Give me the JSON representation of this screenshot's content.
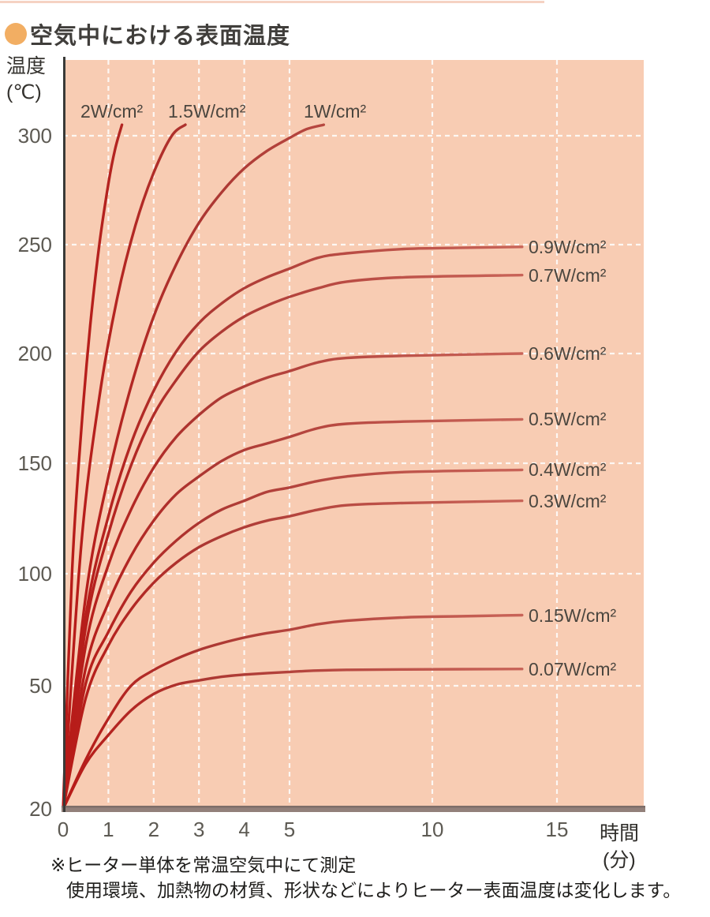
{
  "page": {
    "title": "空気中における表面温度",
    "note_line1": "※ヒーター単体を常温空気中にて測定",
    "note_line2": "使用環境、加熱物の材質、形状などによりヒーター表面温度は変化します。"
  },
  "chart_data": {
    "type": "line",
    "title": "空気中における表面温度",
    "xlabel": "時間",
    "xlabel_unit": "(分)",
    "ylabel": "温度",
    "ylabel_unit": "(℃)",
    "x_ticks": [
      0,
      1,
      2,
      3,
      4,
      5,
      10,
      15
    ],
    "y_ticks": [
      300,
      250,
      200,
      150,
      100,
      50,
      20
    ],
    "xlim": [
      0,
      15.8
    ],
    "ylim": [
      20,
      310
    ],
    "grid": "white-dashed",
    "legend_position": "inline-labels",
    "plot_bg": "#f8ccb3",
    "curve_color_start": "#b81a17",
    "curve_color_mid": "#ac3732",
    "curve_color_end": "#ca665a",
    "axis_color": "#3a3a38",
    "baseline_bar_color": "#92807a",
    "note": "ヒーター単体を常温空気中にて測定。使用環境、加熱物の材質、形状などによりヒーター表面温度は変化します。",
    "series": [
      {
        "label": "2W/cm²",
        "watts_per_cm2": 2,
        "label_side": "top",
        "points": [
          [
            0,
            20
          ],
          [
            0.2,
            102
          ],
          [
            0.4,
            165
          ],
          [
            0.6,
            213
          ],
          [
            0.8,
            250
          ],
          [
            1.0,
            278
          ],
          [
            1.15,
            294
          ],
          [
            1.3,
            305
          ]
        ]
      },
      {
        "label": "1.5W/cm²",
        "watts_per_cm2": 1.5,
        "label_side": "top",
        "points": [
          [
            0,
            20
          ],
          [
            0.4,
            113
          ],
          [
            0.8,
            180
          ],
          [
            1.2,
            226
          ],
          [
            1.6,
            259
          ],
          [
            2.0,
            283
          ],
          [
            2.4,
            300
          ],
          [
            2.7,
            305
          ]
        ]
      },
      {
        "label": "1W/cm²",
        "watts_per_cm2": 1,
        "label_side": "top",
        "points": [
          [
            0,
            20
          ],
          [
            0.5,
            90
          ],
          [
            1,
            144
          ],
          [
            1.5,
            185
          ],
          [
            2,
            217
          ],
          [
            2.5,
            241
          ],
          [
            3,
            260
          ],
          [
            3.5,
            274
          ],
          [
            4,
            285
          ],
          [
            4.5,
            293
          ],
          [
            5,
            299
          ],
          [
            5.6,
            303
          ],
          [
            6.2,
            305
          ]
        ]
      },
      {
        "label": "0.9W/cm²",
        "watts_per_cm2": 0.9,
        "label_side": "right",
        "plateau_c": 248,
        "points": [
          [
            0,
            20
          ],
          [
            0.5,
            81
          ],
          [
            1,
            126
          ],
          [
            1.5,
            159
          ],
          [
            2,
            183
          ],
          [
            2.5,
            201
          ],
          [
            3,
            214
          ],
          [
            3.5,
            223
          ],
          [
            4,
            230
          ],
          [
            4.5,
            235
          ],
          [
            5,
            239
          ],
          [
            6,
            244
          ],
          [
            7,
            246
          ],
          [
            9,
            248
          ],
          [
            11,
            248.5
          ],
          [
            13.6,
            249
          ]
        ]
      },
      {
        "label": "0.7W/cm²",
        "watts_per_cm2": 0.7,
        "label_side": "right",
        "plateau_c": 236,
        "points": [
          [
            0,
            20
          ],
          [
            0.5,
            76
          ],
          [
            1,
            118
          ],
          [
            1.5,
            149
          ],
          [
            2,
            172
          ],
          [
            2.5,
            188
          ],
          [
            3,
            201
          ],
          [
            3.5,
            210
          ],
          [
            4,
            217
          ],
          [
            4.5,
            222
          ],
          [
            5,
            226
          ],
          [
            6,
            230
          ],
          [
            7,
            233
          ],
          [
            9,
            235
          ],
          [
            13.6,
            236
          ]
        ]
      },
      {
        "label": "0.6W/cm²",
        "watts_per_cm2": 0.6,
        "label_side": "right",
        "plateau_c": 200,
        "points": [
          [
            0,
            20
          ],
          [
            0.5,
            68
          ],
          [
            1,
            104
          ],
          [
            1.5,
            129
          ],
          [
            2,
            148
          ],
          [
            2.5,
            162
          ],
          [
            3,
            172
          ],
          [
            3.5,
            180
          ],
          [
            4,
            185
          ],
          [
            4.5,
            189
          ],
          [
            5,
            192
          ],
          [
            6,
            196
          ],
          [
            7,
            198
          ],
          [
            9,
            199
          ],
          [
            13.6,
            200
          ]
        ]
      },
      {
        "label": "0.5W/cm²",
        "watts_per_cm2": 0.5,
        "label_side": "right",
        "plateau_c": 170,
        "points": [
          [
            0,
            20
          ],
          [
            0.5,
            58
          ],
          [
            1,
            87
          ],
          [
            1.5,
            108
          ],
          [
            2,
            124
          ],
          [
            2.5,
            136
          ],
          [
            3,
            144
          ],
          [
            3.5,
            151
          ],
          [
            4,
            156
          ],
          [
            4.5,
            159
          ],
          [
            5,
            162
          ],
          [
            6,
            166
          ],
          [
            7,
            168
          ],
          [
            9,
            169
          ],
          [
            13.6,
            170
          ]
        ]
      },
      {
        "label": "0.4W/cm²",
        "watts_per_cm2": 0.4,
        "label_side": "right",
        "plateau_c": 147,
        "points": [
          [
            0,
            20
          ],
          [
            0.5,
            51
          ],
          [
            1,
            74
          ],
          [
            1.5,
            92
          ],
          [
            2,
            105
          ],
          [
            2.5,
            115
          ],
          [
            3,
            123
          ],
          [
            3.5,
            129
          ],
          [
            4,
            133
          ],
          [
            4.5,
            137
          ],
          [
            5,
            139
          ],
          [
            6,
            142
          ],
          [
            7,
            144
          ],
          [
            9,
            146
          ],
          [
            13.6,
            147
          ]
        ]
      },
      {
        "label": "0.3W/cm²",
        "watts_per_cm2": 0.3,
        "label_side": "right",
        "plateau_c": 133,
        "points": [
          [
            0,
            20
          ],
          [
            0.5,
            47
          ],
          [
            1,
            68
          ],
          [
            1.5,
            84
          ],
          [
            2,
            96
          ],
          [
            2.5,
            105
          ],
          [
            3,
            112
          ],
          [
            3.5,
            117
          ],
          [
            4,
            121
          ],
          [
            4.5,
            124
          ],
          [
            5,
            126
          ],
          [
            6,
            129
          ],
          [
            7,
            131
          ],
          [
            9,
            132
          ],
          [
            13.6,
            133
          ]
        ]
      },
      {
        "label": "0.15W/cm²",
        "watts_per_cm2": 0.15,
        "label_side": "right",
        "plateau_c": 82,
        "points": [
          [
            0,
            20
          ],
          [
            0.5,
            32
          ],
          [
            1,
            42
          ],
          [
            1.5,
            50
          ],
          [
            2,
            57
          ],
          [
            2.5,
            62
          ],
          [
            3,
            66
          ],
          [
            3.5,
            69
          ],
          [
            4,
            71.5
          ],
          [
            4.5,
            73.5
          ],
          [
            5,
            75
          ],
          [
            6,
            77.5
          ],
          [
            7,
            79
          ],
          [
            9,
            80.5
          ],
          [
            11,
            81
          ],
          [
            13.6,
            81.5
          ]
        ]
      },
      {
        "label": "0.07W/cm²",
        "watts_per_cm2": 0.07,
        "label_side": "right",
        "plateau_c": 57,
        "points": [
          [
            0,
            20
          ],
          [
            0.5,
            31
          ],
          [
            1,
            38
          ],
          [
            1.5,
            44
          ],
          [
            2,
            48
          ],
          [
            2.5,
            50.5
          ],
          [
            3,
            52.4
          ],
          [
            3.5,
            54
          ],
          [
            4,
            55
          ],
          [
            5,
            56.2
          ],
          [
            6,
            56.8
          ],
          [
            7,
            57.1
          ],
          [
            9,
            57.3
          ],
          [
            13.6,
            57.5
          ]
        ]
      }
    ]
  }
}
